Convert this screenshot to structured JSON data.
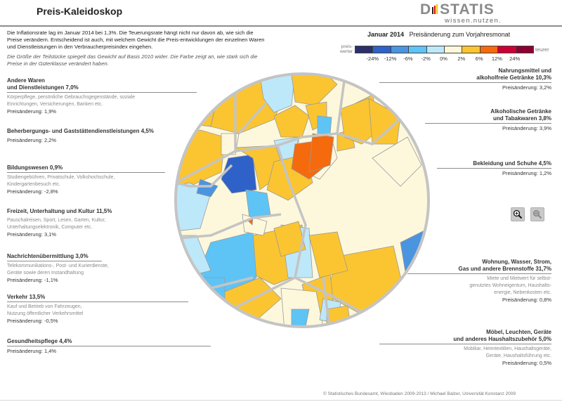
{
  "header": {
    "title": "Preis-Kaleidoskop",
    "logo_main": "DESTATIS",
    "logo_sub": "wissen.nutzen."
  },
  "intro": {
    "text": "Die Inflationsrate lag im Januar 2014 bei 1,3%. Die Teuerungsrate hängt nicht nur davon ab, wie sich die Preise verändern. Entscheidend ist auch, mit welchem Gewicht die Preis-entwicklungen der einzelnen Waren und Dienstleistungen in den Verbraucherpreisindex eingehen.",
    "note": "Die Größe der Teilstücke spiegelt das Gewicht auf Basis 2010 wider. Die Farbe zeigt an, wie stark sich die Preise in der Güterklasse verändert haben."
  },
  "legend": {
    "month": "Januar 2014",
    "subtitle": "Preisänderung zum Vorjahresmonat",
    "left_label": "preis-werter",
    "right_label": "teurer",
    "ticks": [
      "-24%",
      "-12%",
      "-6%",
      "-2%",
      "0%",
      "2%",
      "6%",
      "12%",
      "24%"
    ],
    "colors": [
      "#2b2f6b",
      "#2f62c8",
      "#4a94e0",
      "#5ec4f5",
      "#bde8fa",
      "#fdf8dc",
      "#fbc531",
      "#f56a0c",
      "#cc0033",
      "#8c0031"
    ]
  },
  "categories_left": [
    {
      "title": "Andere Waren und Dienstleistungen 7,0%",
      "title_lines": [
        "Andere Waren",
        "und Dienstleistungen 7,0%"
      ],
      "desc_lines": [
        "Körperpflege, persönliche Gebrauchsgegenstände, soziale",
        "Einrichtungen, Versicherungen, Banken etc."
      ],
      "change": "Preisänderung: 1,9%"
    },
    {
      "title_lines": [
        "Beherbergungs- und Gaststättendienstleistungen 4,5%"
      ],
      "desc_lines": [],
      "change": "Preisänderung: 2,2%"
    },
    {
      "title_lines": [
        "Bildungswesen 0,9%"
      ],
      "desc_lines": [
        "Studiengebühren, Privatschule, Volkshochschule,",
        "Kindergartenbesuch etc."
      ],
      "change": "Preisänderung: -2,8%"
    },
    {
      "title_lines": [
        "Freizeit, Unterhaltung und Kultur 11,5%"
      ],
      "desc_lines": [
        "Pauschalreisen, Sport, Lesen, Garten, Kultur,",
        "Unterhaltungselektronik, Computer etc."
      ],
      "change": "Preisänderung: 3,1%"
    },
    {
      "title_lines": [
        "Nachrichtenübermittlung 3,0%"
      ],
      "desc_lines": [
        "Telekommunikations-, Post- und Kurierdienste,",
        "Geräte sowie deren Instandhaltung"
      ],
      "change": "Preisänderung: -1,1%"
    },
    {
      "title_lines": [
        "Verkehr 13,5%"
      ],
      "desc_lines": [
        "Kauf und Betrieb von Fahrzeugen,",
        "Nutzung öffentlicher Verkehrsmittel"
      ],
      "change": "Preisänderung: -0,5%"
    },
    {
      "title_lines": [
        "Gesundheitspflege 4,4%"
      ],
      "desc_lines": [],
      "change": "Preisänderung: 1,4%"
    }
  ],
  "categories_right": [
    {
      "title_lines": [
        "Nahrungsmittel und",
        "alkoholfreie Getränke 10,3%"
      ],
      "desc_lines": [],
      "change": "Preisänderung: 3,2%"
    },
    {
      "title_lines": [
        "Alkoholische Getränke",
        "und Tabakwaren 3,8%"
      ],
      "desc_lines": [],
      "change": "Preisänderung: 3,9%"
    },
    {
      "title_lines": [
        "Bekleidung und Schuhe 4,5%"
      ],
      "desc_lines": [],
      "change": "Preisänderung: 1,2%"
    },
    {
      "title_lines": [
        "Wohnung, Wasser, Strom,",
        "Gas und andere Brennstoffe 31,7%"
      ],
      "desc_lines": [
        "Miete und Mietwert für selbst-",
        "genutztes Wohneigentum, Haushalts-",
        "energie, Nebenkosten etc."
      ],
      "change": "Preisänderung: 0,8%"
    },
    {
      "title_lines": [
        "Möbel, Leuchten, Geräte",
        "und anderes Haushaltszubehör 5,0%"
      ],
      "desc_lines": [
        "Mobiliar, Heimtextilien, Haushaltsgeräte,",
        "Geräte, Haushaltsführung etc."
      ],
      "change": "Preisänderung: 0,5%"
    }
  ],
  "zoom_controls": {
    "zoom_in": "zoom-in",
    "zoom_out": "zoom-out"
  },
  "footer": "© Statistisches Bundesamt, Wiesbaden 2009-2013 / Michael Balzer, Universität Konstanz 2009"
}
